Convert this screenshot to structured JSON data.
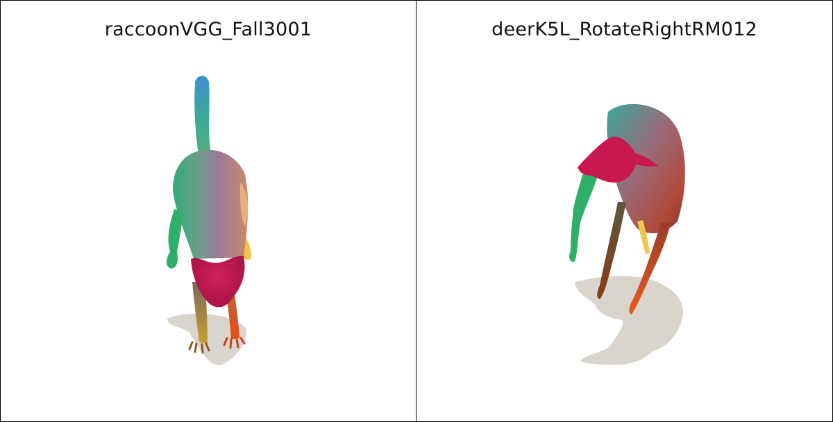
{
  "panels": [
    {
      "title": "raccoonVGG_Fall3001",
      "subject": "raccoon-mesh-render"
    },
    {
      "title": "deerK5L_RotateRightRM012",
      "subject": "deer-mesh-render"
    }
  ],
  "colors": {
    "background": "#ffffff",
    "border": "#000000",
    "shadow": "#d9d5cc",
    "head": "#c8184f",
    "green": "#2fb06a",
    "yellow": "#f3c64a",
    "orange": "#e3541f",
    "teal": "#3aa89a"
  }
}
